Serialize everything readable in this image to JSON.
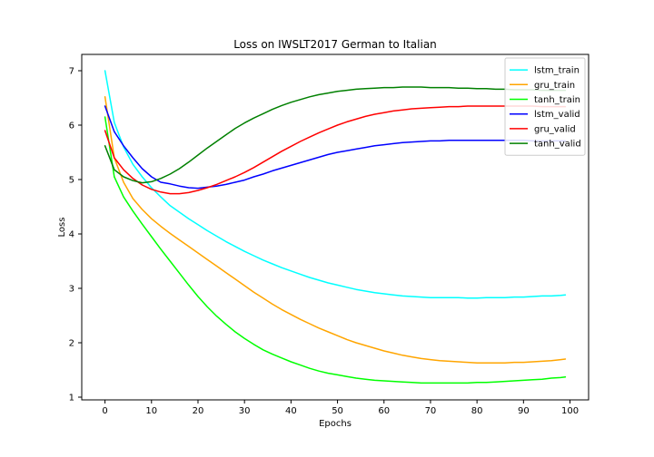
{
  "chart_data": {
    "type": "line",
    "title": "Loss on IWSLT2017 German to Italian",
    "xlabel": "Epochs",
    "ylabel": "Loss",
    "xlim": [
      -5,
      104
    ],
    "ylim": [
      0.95,
      7.3
    ],
    "xticks": [
      0,
      10,
      20,
      30,
      40,
      50,
      60,
      70,
      80,
      90,
      100
    ],
    "yticks": [
      1,
      2,
      3,
      4,
      5,
      6,
      7
    ],
    "grid": false,
    "legend_position": "top-right",
    "x": [
      0,
      2,
      4,
      6,
      8,
      10,
      12,
      14,
      16,
      18,
      20,
      22,
      24,
      26,
      28,
      30,
      32,
      34,
      36,
      38,
      40,
      42,
      44,
      46,
      48,
      50,
      52,
      54,
      56,
      58,
      60,
      62,
      64,
      66,
      68,
      70,
      72,
      74,
      76,
      78,
      80,
      82,
      84,
      86,
      88,
      90,
      92,
      94,
      96,
      98,
      99
    ],
    "series": [
      {
        "name": "lstm_train",
        "color": "#00ffff",
        "values": [
          7.0,
          6.05,
          5.6,
          5.28,
          5.05,
          4.85,
          4.68,
          4.52,
          4.4,
          4.28,
          4.17,
          4.06,
          3.96,
          3.86,
          3.77,
          3.68,
          3.6,
          3.52,
          3.45,
          3.38,
          3.32,
          3.26,
          3.2,
          3.15,
          3.1,
          3.06,
          3.02,
          2.98,
          2.95,
          2.92,
          2.9,
          2.88,
          2.86,
          2.85,
          2.84,
          2.83,
          2.83,
          2.83,
          2.83,
          2.82,
          2.82,
          2.83,
          2.83,
          2.83,
          2.84,
          2.84,
          2.85,
          2.86,
          2.86,
          2.87,
          2.88
        ]
      },
      {
        "name": "gru_train",
        "color": "#ffa500",
        "values": [
          6.52,
          5.4,
          4.95,
          4.65,
          4.45,
          4.28,
          4.14,
          4.01,
          3.89,
          3.77,
          3.65,
          3.53,
          3.41,
          3.29,
          3.17,
          3.05,
          2.93,
          2.82,
          2.71,
          2.61,
          2.52,
          2.43,
          2.35,
          2.27,
          2.2,
          2.13,
          2.06,
          2.0,
          1.95,
          1.9,
          1.85,
          1.81,
          1.77,
          1.74,
          1.71,
          1.69,
          1.67,
          1.66,
          1.65,
          1.64,
          1.63,
          1.63,
          1.63,
          1.63,
          1.64,
          1.64,
          1.65,
          1.66,
          1.67,
          1.69,
          1.7
        ]
      },
      {
        "name": "tanh_train",
        "color": "#00ff00",
        "values": [
          6.15,
          5.05,
          4.68,
          4.42,
          4.18,
          3.95,
          3.72,
          3.5,
          3.28,
          3.06,
          2.85,
          2.66,
          2.49,
          2.34,
          2.2,
          2.08,
          1.97,
          1.87,
          1.79,
          1.72,
          1.65,
          1.59,
          1.53,
          1.48,
          1.44,
          1.41,
          1.38,
          1.35,
          1.33,
          1.31,
          1.3,
          1.29,
          1.28,
          1.27,
          1.26,
          1.26,
          1.26,
          1.26,
          1.26,
          1.26,
          1.27,
          1.27,
          1.28,
          1.29,
          1.3,
          1.31,
          1.32,
          1.33,
          1.35,
          1.36,
          1.37
        ]
      },
      {
        "name": "lstm_valid",
        "color": "#0000ff",
        "values": [
          6.35,
          5.88,
          5.62,
          5.4,
          5.2,
          5.05,
          4.95,
          4.92,
          4.88,
          4.85,
          4.84,
          4.86,
          4.88,
          4.91,
          4.95,
          4.99,
          5.05,
          5.1,
          5.16,
          5.21,
          5.26,
          5.31,
          5.36,
          5.41,
          5.46,
          5.5,
          5.53,
          5.56,
          5.59,
          5.62,
          5.64,
          5.66,
          5.68,
          5.69,
          5.7,
          5.71,
          5.71,
          5.72,
          5.72,
          5.72,
          5.72,
          5.72,
          5.72,
          5.72,
          5.72,
          5.72,
          5.71,
          5.71,
          5.71,
          5.71,
          5.71
        ]
      },
      {
        "name": "gru_valid",
        "color": "#ff0000",
        "values": [
          5.9,
          5.4,
          5.18,
          5.02,
          4.9,
          4.82,
          4.77,
          4.74,
          4.74,
          4.76,
          4.8,
          4.85,
          4.91,
          4.98,
          5.05,
          5.13,
          5.22,
          5.32,
          5.42,
          5.52,
          5.61,
          5.7,
          5.78,
          5.86,
          5.93,
          6.0,
          6.06,
          6.11,
          6.16,
          6.2,
          6.23,
          6.26,
          6.28,
          6.3,
          6.31,
          6.32,
          6.33,
          6.34,
          6.34,
          6.35,
          6.35,
          6.35,
          6.35,
          6.35,
          6.35,
          6.35,
          6.35,
          6.34,
          6.34,
          6.34,
          6.34
        ]
      },
      {
        "name": "tanh_valid",
        "color": "#008000",
        "values": [
          5.62,
          5.18,
          5.05,
          4.98,
          4.94,
          4.96,
          5.02,
          5.1,
          5.2,
          5.32,
          5.45,
          5.58,
          5.7,
          5.82,
          5.94,
          6.04,
          6.13,
          6.21,
          6.29,
          6.36,
          6.42,
          6.47,
          6.52,
          6.56,
          6.59,
          6.62,
          6.64,
          6.66,
          6.67,
          6.68,
          6.69,
          6.69,
          6.7,
          6.7,
          6.7,
          6.69,
          6.69,
          6.69,
          6.68,
          6.68,
          6.67,
          6.67,
          6.66,
          6.66,
          6.65,
          6.65,
          6.65,
          6.64,
          6.64,
          6.64,
          6.64
        ]
      }
    ]
  }
}
